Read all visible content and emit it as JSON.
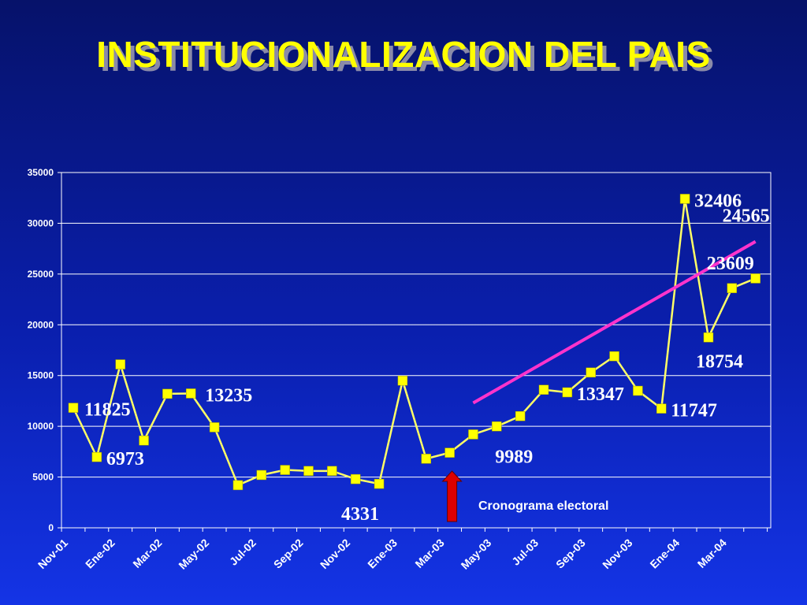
{
  "title": "INSTITUCIONALIZACION DEL PAIS",
  "colors": {
    "line": "#ffff66",
    "marker": "#ffff00",
    "trend": "#ff33cc",
    "grid": "#ffffff",
    "arrow": "#dd0000"
  },
  "chart_data": {
    "type": "line",
    "title": "INSTITUCIONALIZACION DEL PAIS",
    "xlabel": "",
    "ylabel": "",
    "ylim": [
      0,
      35000
    ],
    "yticks": [
      "0",
      "5000",
      "10000",
      "15000",
      "20000",
      "25000",
      "30000",
      "35000"
    ],
    "x_tick_labels": [
      "Nov-01",
      "Ene-02",
      "Mar-02",
      "May-02",
      "Jul-02",
      "Sep-02",
      "Nov-02",
      "Ene-03",
      "Mar-03",
      "May-03",
      "Jul-03",
      "Sep-03",
      "Nov-03",
      "Ene-04",
      "Mar-04"
    ],
    "grid": true,
    "legend": "none",
    "series": [
      {
        "values": [
          11825,
          6973,
          16100,
          8600,
          13200,
          13235,
          9900,
          4200,
          5200,
          5700,
          5600,
          5600,
          4800,
          4331,
          14500,
          6800,
          7400,
          9200,
          9989,
          11000,
          13600,
          13347,
          15300,
          16900,
          13500,
          11747,
          32406,
          18754,
          23609,
          24565
        ]
      }
    ],
    "data_labels": [
      {
        "index": 0,
        "text": "11825"
      },
      {
        "index": 1,
        "text": "6973"
      },
      {
        "index": 5,
        "text": "13235"
      },
      {
        "index": 13,
        "text": "4331"
      },
      {
        "index": 18,
        "text": "9989"
      },
      {
        "index": 21,
        "text": "13347"
      },
      {
        "index": 25,
        "text": "11747"
      },
      {
        "index": 26,
        "text": "32406"
      },
      {
        "index": 27,
        "text": "18754"
      },
      {
        "index": 28,
        "text": "23609"
      },
      {
        "index": 29,
        "text": "24565"
      }
    ],
    "trendline": {
      "start_index": 17,
      "start_value": 12300,
      "end_index": 29,
      "end_value": 28200
    },
    "annotations": [
      {
        "text": "Cronograma electoral",
        "index": 16
      }
    ]
  }
}
